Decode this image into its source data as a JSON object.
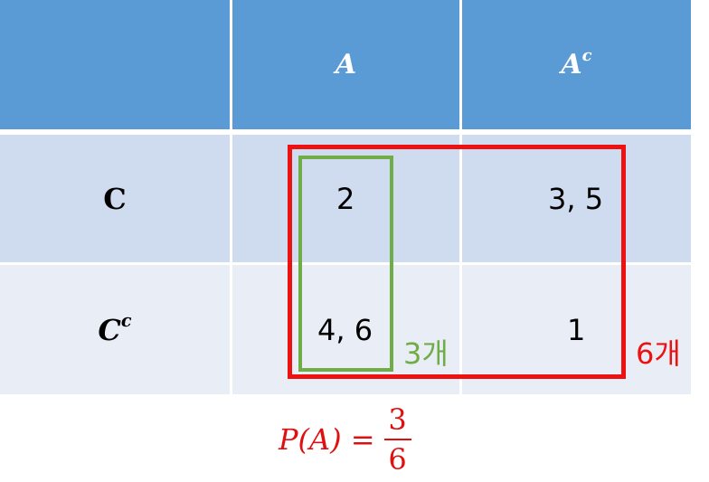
{
  "table": {
    "header": {
      "corner": "",
      "col_a": "A",
      "col_ac_base": "A",
      "col_ac_sup": "c"
    },
    "rows": [
      {
        "label_base": "C",
        "label_sup": "",
        "a": "2",
        "ac": "3, 5"
      },
      {
        "label_base": "C",
        "label_sup": "c",
        "a": "4, 6",
        "ac": "1"
      }
    ]
  },
  "annotations": {
    "green_count": "3개",
    "red_count": "6개"
  },
  "formula": {
    "lhs": "P(A) =",
    "numerator": "3",
    "denominator": "6"
  },
  "colors": {
    "header": "#5b9bd5",
    "row1": "#cfdcef",
    "row2": "#e8edf6",
    "green": "#70ad47",
    "red": "#e01010"
  }
}
